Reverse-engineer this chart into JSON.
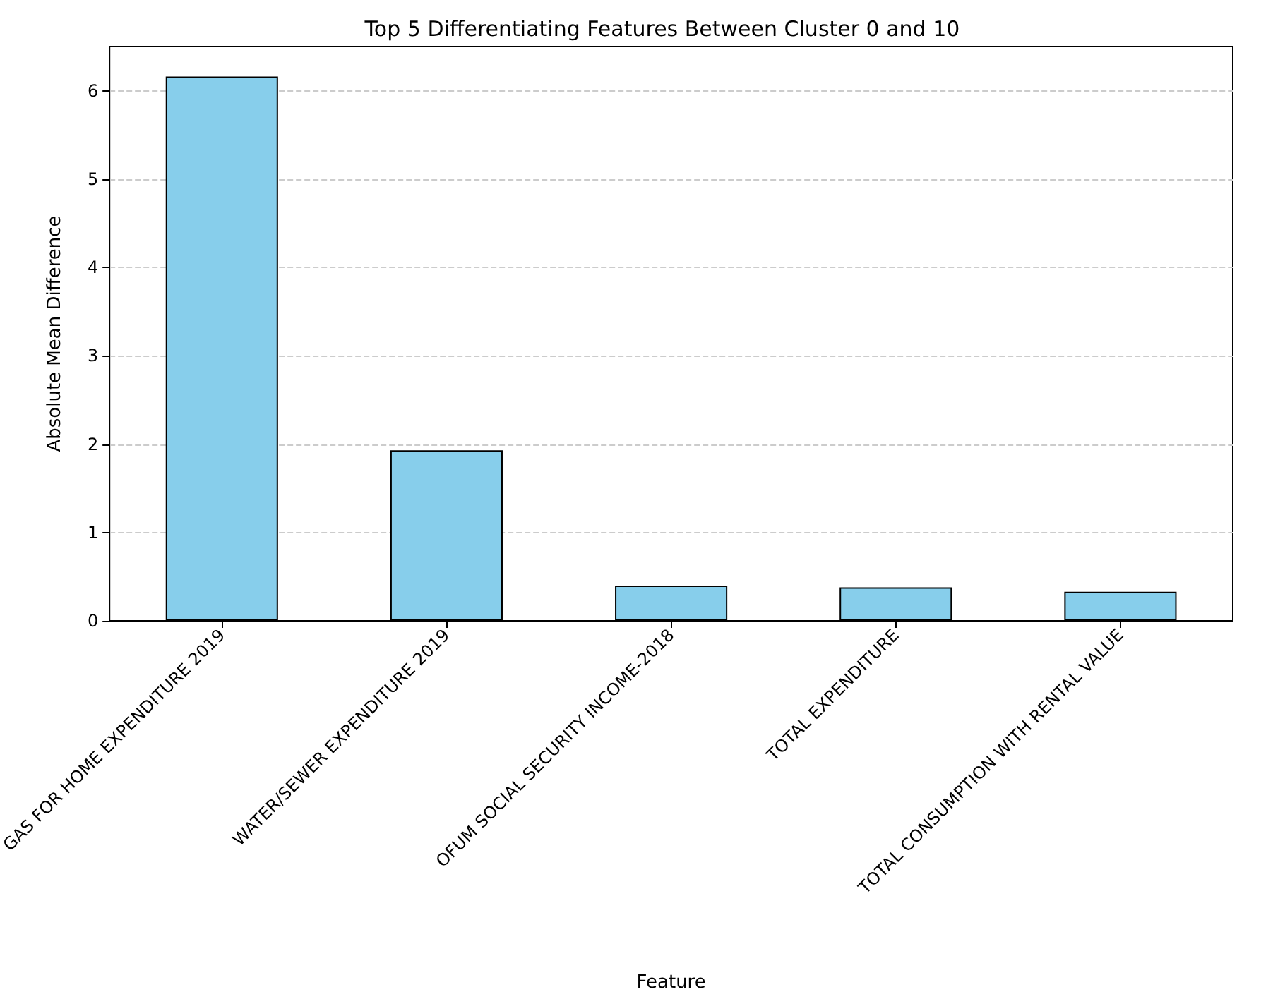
{
  "chart_data": {
    "type": "bar",
    "title": "Top 5 Differentiating Features Between Cluster 0 and 10",
    "xlabel": "Feature",
    "ylabel": "Absolute Mean Difference",
    "categories": [
      "GAS FOR HOME EXPENDITURE 2019",
      "WATER/SEWER EXPENDITURE 2019",
      "OFUM SOCIAL SECURITY INCOME-2018",
      "TOTAL EXPENDITURE",
      "TOTAL CONSUMPTION WITH RENTAL VALUE"
    ],
    "values": [
      6.16,
      1.93,
      0.4,
      0.38,
      0.33
    ],
    "color": "#87ceeb",
    "ylim": [
      0,
      6.5
    ],
    "yticks": [
      0,
      1,
      2,
      3,
      4,
      5,
      6
    ],
    "grid": "y"
  }
}
